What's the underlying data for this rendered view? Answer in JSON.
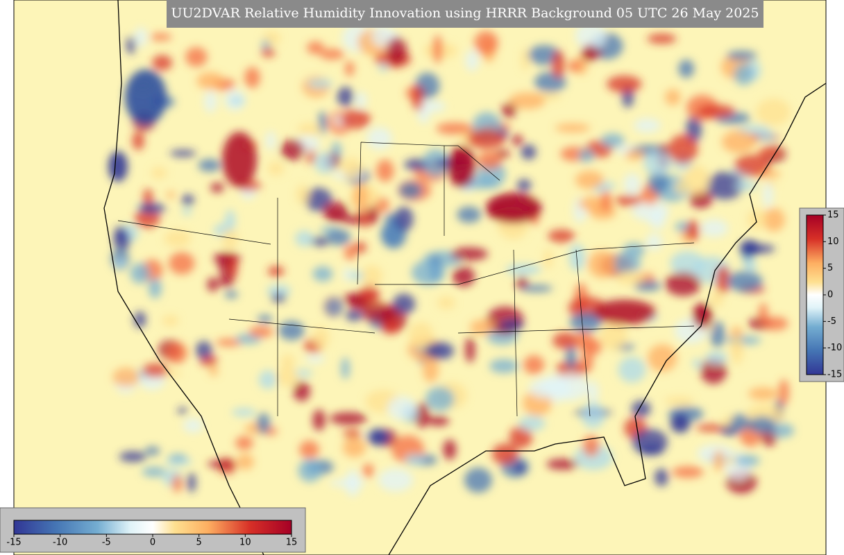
{
  "title": "UU2DVAR Relative Humidity Innovation using HRRR Background 05 UTC 26 May 2025",
  "colorbars": [
    {
      "orientation": "horizontal",
      "lim": [
        -15,
        15
      ],
      "ticks": [
        -15,
        -10,
        -5,
        0,
        5,
        10,
        15
      ]
    },
    {
      "orientation": "vertical",
      "lim": [
        -15,
        15
      ],
      "ticks": [
        15,
        10,
        5,
        0,
        -5,
        -10,
        -15
      ]
    }
  ]
}
